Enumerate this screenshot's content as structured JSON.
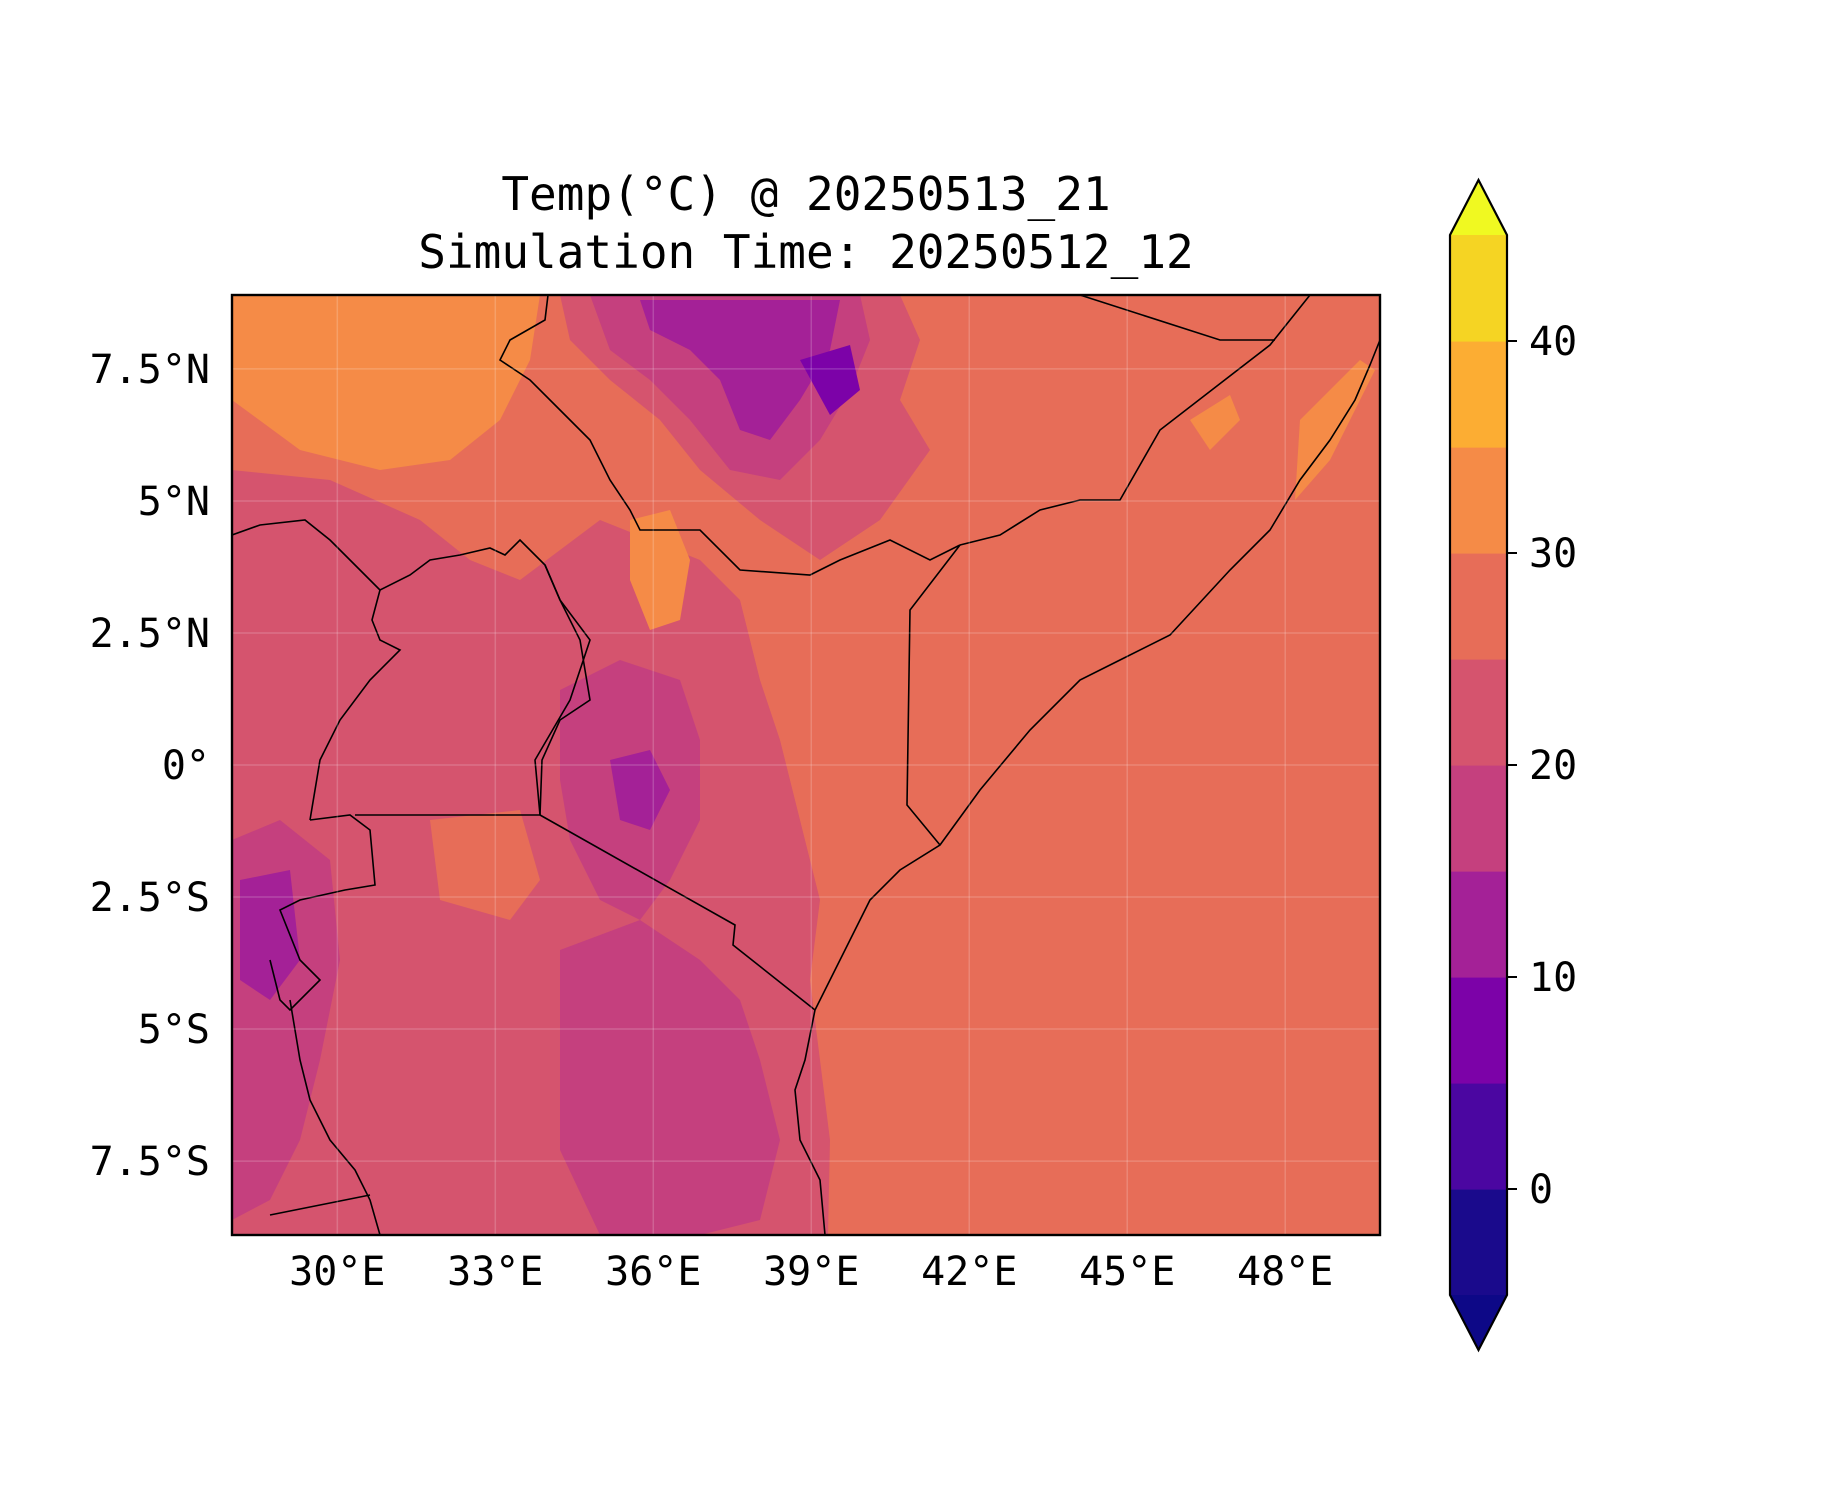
{
  "title": {
    "line1": "Temp(°C) @ 20250513_21",
    "line2": "Simulation Time: 20250512_12"
  },
  "map": {
    "lon_range": [
      28.0,
      49.8
    ],
    "lat_range": [
      -8.9,
      8.9
    ],
    "lon_ticks": [
      {
        "value": 30,
        "label": "30°E"
      },
      {
        "value": 33,
        "label": "33°E"
      },
      {
        "value": 36,
        "label": "36°E"
      },
      {
        "value": 39,
        "label": "39°E"
      },
      {
        "value": 42,
        "label": "42°E"
      },
      {
        "value": 45,
        "label": "45°E"
      },
      {
        "value": 48,
        "label": "48°E"
      }
    ],
    "lat_ticks": [
      {
        "value": 7.5,
        "label": "7.5°N"
      },
      {
        "value": 5,
        "label": "5°N"
      },
      {
        "value": 2.5,
        "label": "2.5°N"
      },
      {
        "value": 0,
        "label": "0°"
      },
      {
        "value": -2.5,
        "label": "2.5°S"
      },
      {
        "value": -5,
        "label": "5°S"
      },
      {
        "value": -7.5,
        "label": "7.5°S"
      }
    ],
    "gridlines": true
  },
  "colorbar": {
    "levels": [
      -5,
      0,
      5,
      10,
      15,
      20,
      25,
      30,
      35,
      40,
      45
    ],
    "colors": [
      "#1a0a8c",
      "#4b06a1",
      "#7c02a8",
      "#a42197",
      "#c5407e",
      "#d5546e",
      "#e76d58",
      "#f58b47",
      "#fcad33",
      "#f5d423",
      "#f0f921"
    ],
    "under_color": "#0d0887",
    "over_color": "#f0f921",
    "extend": "both",
    "tick_labels": [
      {
        "value": 0,
        "label": "0"
      },
      {
        "value": 10,
        "label": "10"
      },
      {
        "value": 20,
        "label": "20"
      },
      {
        "value": 30,
        "label": "30"
      },
      {
        "value": 40,
        "label": "40"
      }
    ]
  }
}
